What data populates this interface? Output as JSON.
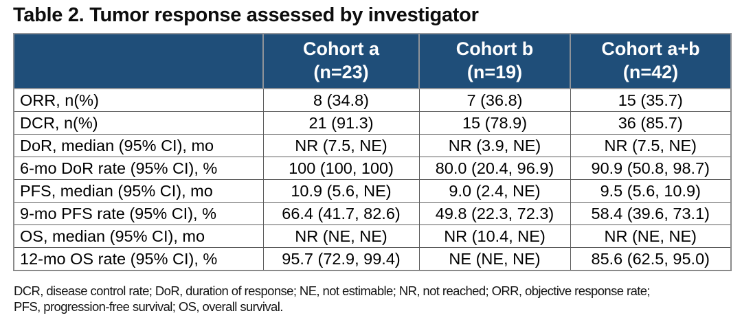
{
  "title": "Table 2. Tumor response assessed by investigator",
  "table": {
    "header": {
      "columns": [
        {
          "name": "Cohort a",
          "n": "(n=23)"
        },
        {
          "name": "Cohort b",
          "n": "(n=19)"
        },
        {
          "name": "Cohort a+b",
          "n": "(n=42)"
        }
      ]
    },
    "rows": [
      {
        "label": "ORR, n(%)",
        "values": [
          "8 (34.8)",
          "7 (36.8)",
          "15 (35.7)"
        ]
      },
      {
        "label": "DCR, n(%)",
        "values": [
          "21 (91.3)",
          "15 (78.9)",
          "36 (85.7)"
        ]
      },
      {
        "label": "DoR, median (95% CI), mo",
        "values": [
          "NR (7.5, NE)",
          "NR (3.9, NE)",
          "NR (7.5, NE)"
        ]
      },
      {
        "label": "6-mo DoR rate (95% CI), %",
        "values": [
          "100 (100, 100)",
          "80.0 (20.4, 96.9)",
          "90.9 (50.8, 98.7)"
        ]
      },
      {
        "label": "PFS, median (95% CI), mo",
        "values": [
          "10.9 (5.6, NE)",
          "9.0 (2.4, NE)",
          "9.5 (5.6, 10.9)"
        ]
      },
      {
        "label": "9-mo PFS rate (95% CI), %",
        "values": [
          "66.4 (41.7, 82.6)",
          "49.8 (22.3, 72.3)",
          "58.4 (39.6, 73.1)"
        ]
      },
      {
        "label": "OS, median (95% CI), mo",
        "values": [
          "NR (NE, NE)",
          "NR (10.4, NE)",
          "NR (NE, NE)"
        ]
      },
      {
        "label": "12-mo OS rate (95% CI), %",
        "values": [
          "95.7 (72.9, 99.4)",
          "NE (NE, NE)",
          "85.6 (62.5, 95.0)"
        ]
      }
    ]
  },
  "footnote": {
    "line1": "DCR, disease control rate; DoR, duration of response; NE, not estimable; NR, not reached; ORR, objective response rate;",
    "line2": "PFS, progression-free survival; OS, overall survival."
  },
  "colors": {
    "header_bg": "#1F4E79",
    "header_text": "#FFFFFF",
    "body_text": "#000000",
    "outer_border": "#8A8A8A",
    "inner_border": "#5A5A5A"
  }
}
